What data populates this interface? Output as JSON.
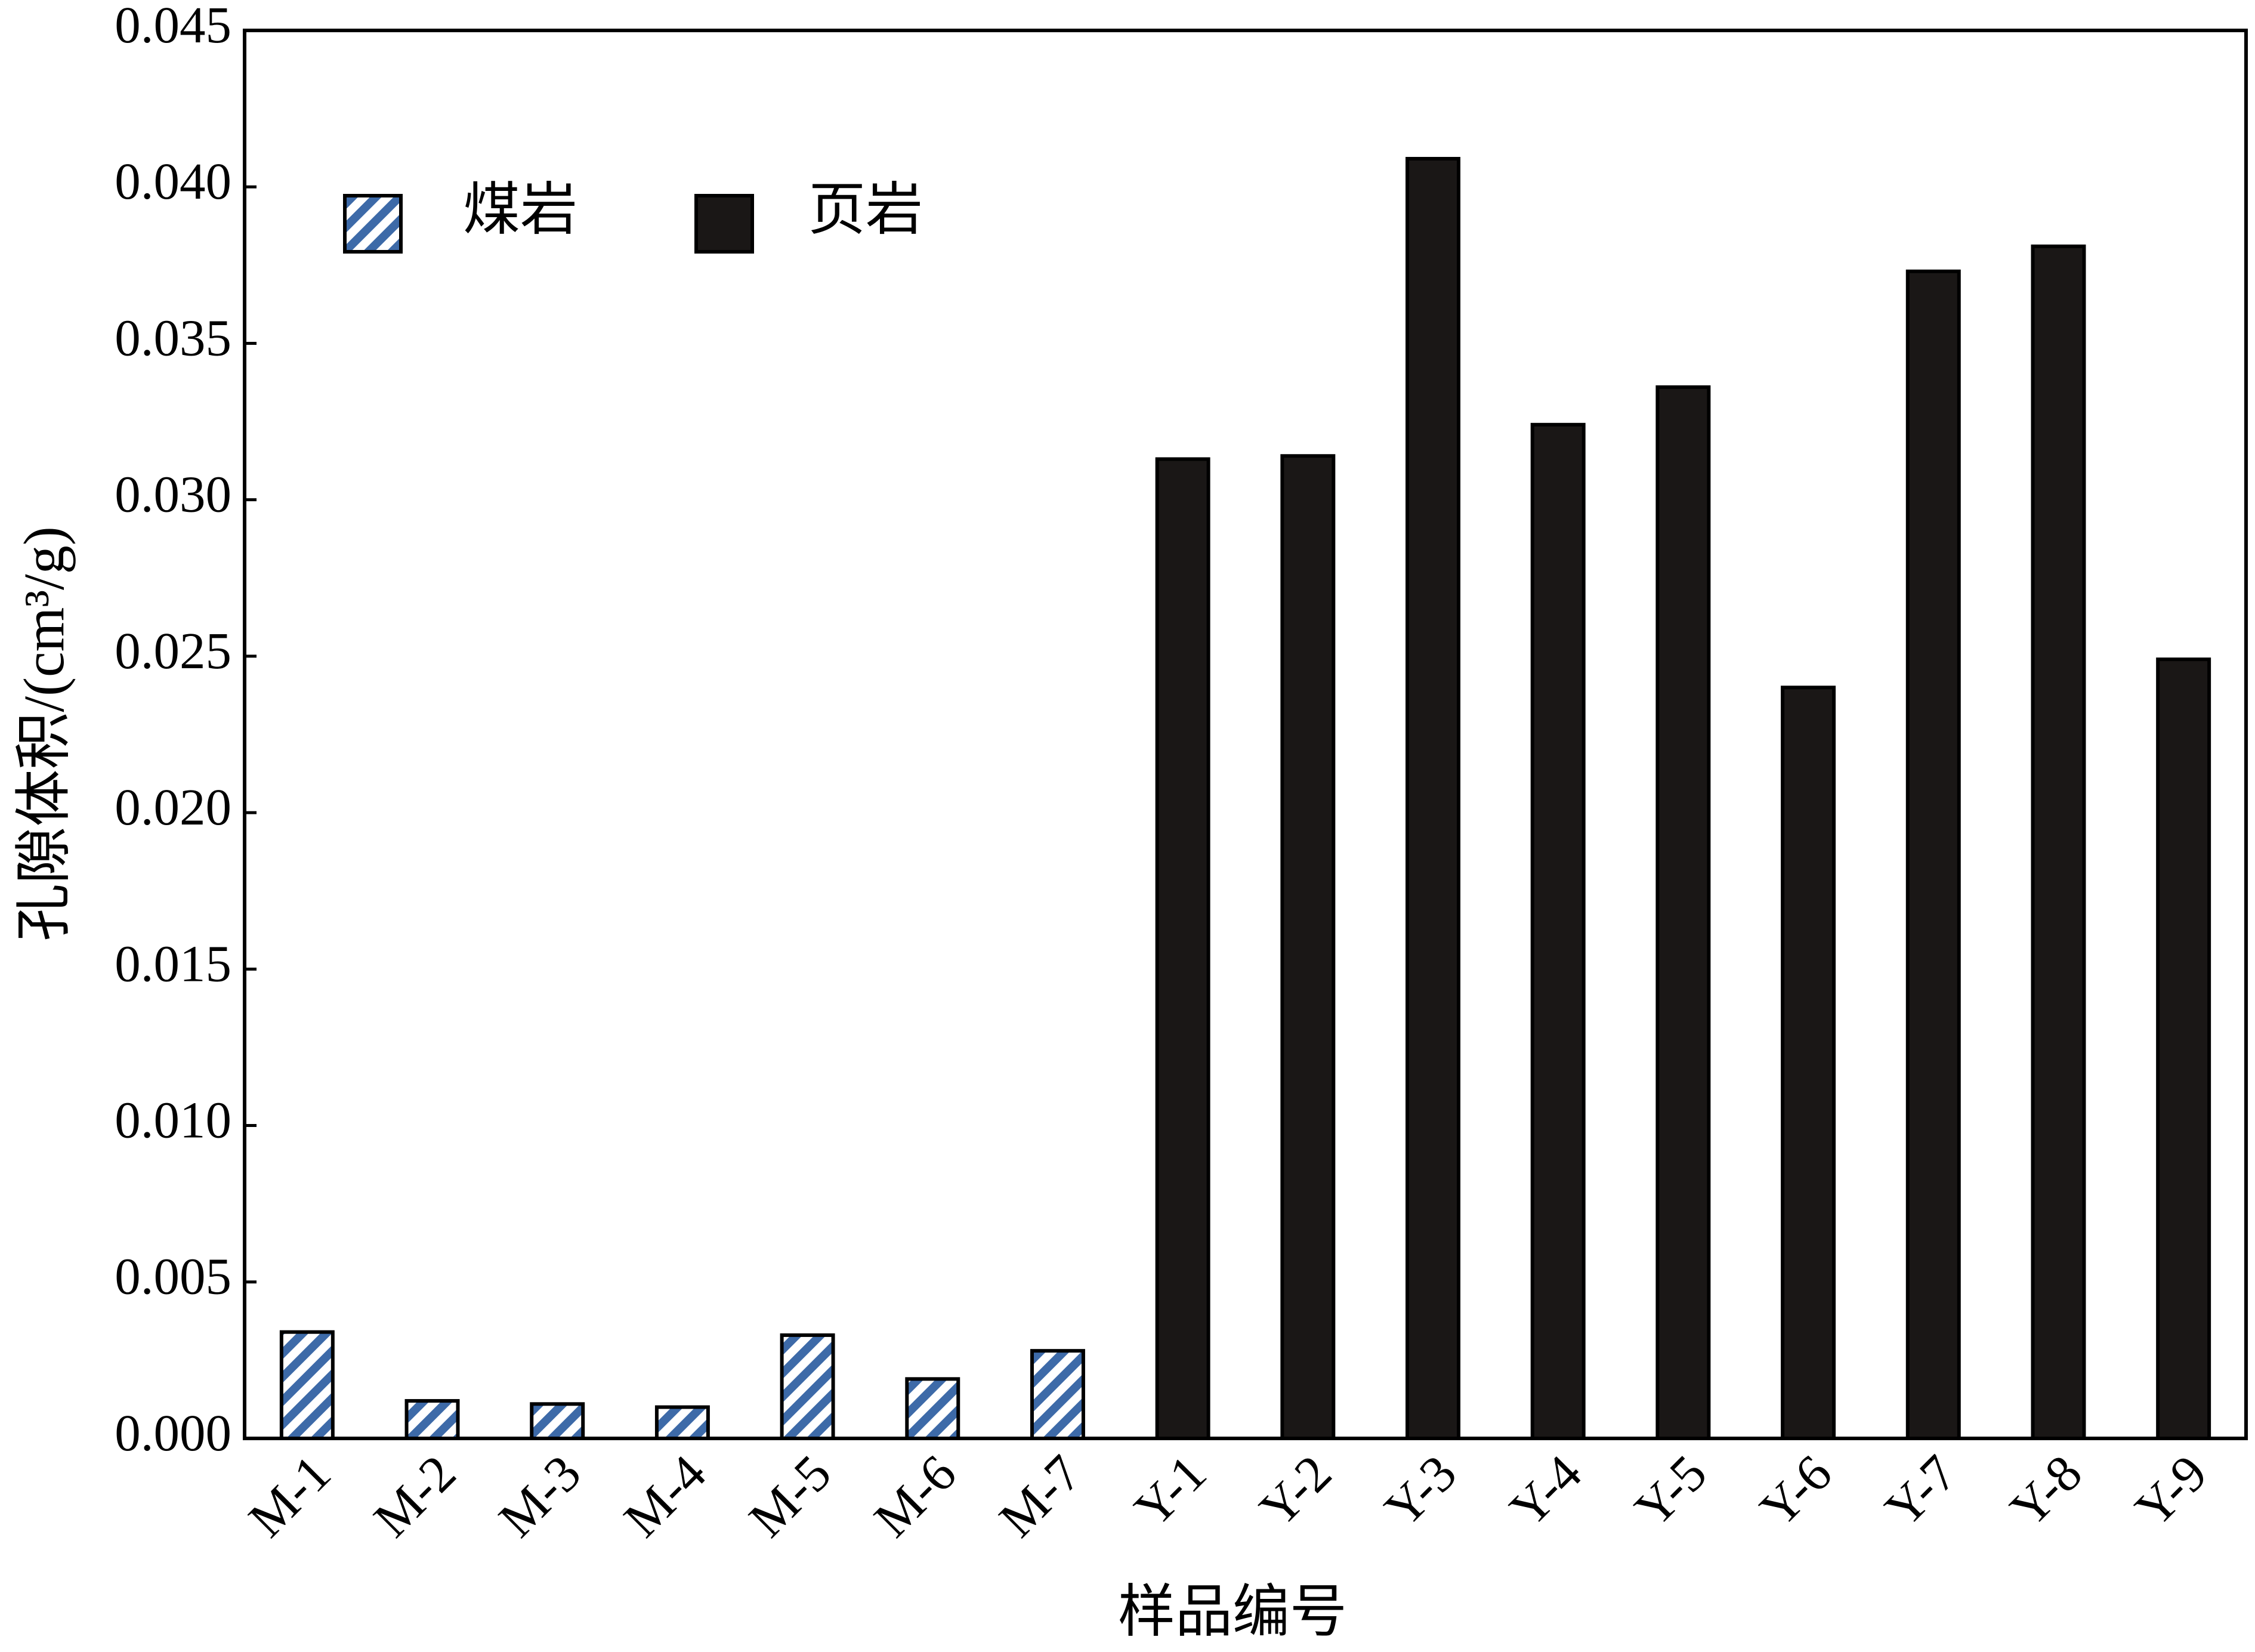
{
  "chart_data": {
    "type": "bar",
    "y_label": "孔隙体积/(cm³/g)",
    "x_label": "样品编号",
    "categories": [
      "M-1",
      "M-2",
      "M-3",
      "M-4",
      "M-5",
      "M-6",
      "M-7",
      "Y-1",
      "Y-2",
      "Y-3",
      "Y-4",
      "Y-5",
      "Y-6",
      "Y-7",
      "Y-8",
      "Y-9"
    ],
    "series": [
      {
        "name": "煤岩",
        "color": "#3d6aa8",
        "pattern": "hatch",
        "values": [
          0.0034,
          0.0012,
          0.0011,
          0.001,
          0.0033,
          0.0019,
          0.0028,
          null,
          null,
          null,
          null,
          null,
          null,
          null,
          null,
          null
        ]
      },
      {
        "name": "页岩",
        "color": "#1a1716",
        "values": [
          null,
          null,
          null,
          null,
          null,
          null,
          null,
          0.0313,
          0.0314,
          0.0409,
          0.0324,
          0.0336,
          0.024,
          0.0373,
          0.0381,
          0.0249
        ]
      }
    ],
    "ylim": [
      0,
      0.045
    ],
    "yticks": [
      {
        "value": 0,
        "label": "0.000"
      },
      {
        "value": 0.005,
        "label": "0.005"
      },
      {
        "value": 0.01,
        "label": "0.010"
      },
      {
        "value": 0.015,
        "label": "0.015"
      },
      {
        "value": 0.02,
        "label": "0.020"
      },
      {
        "value": 0.025,
        "label": "0.025"
      },
      {
        "value": 0.03,
        "label": "0.030"
      },
      {
        "value": 0.035,
        "label": "0.035"
      },
      {
        "value": 0.04,
        "label": "0.040"
      },
      {
        "value": 0.045,
        "label": "0.045"
      }
    ],
    "legend": "upper left"
  }
}
